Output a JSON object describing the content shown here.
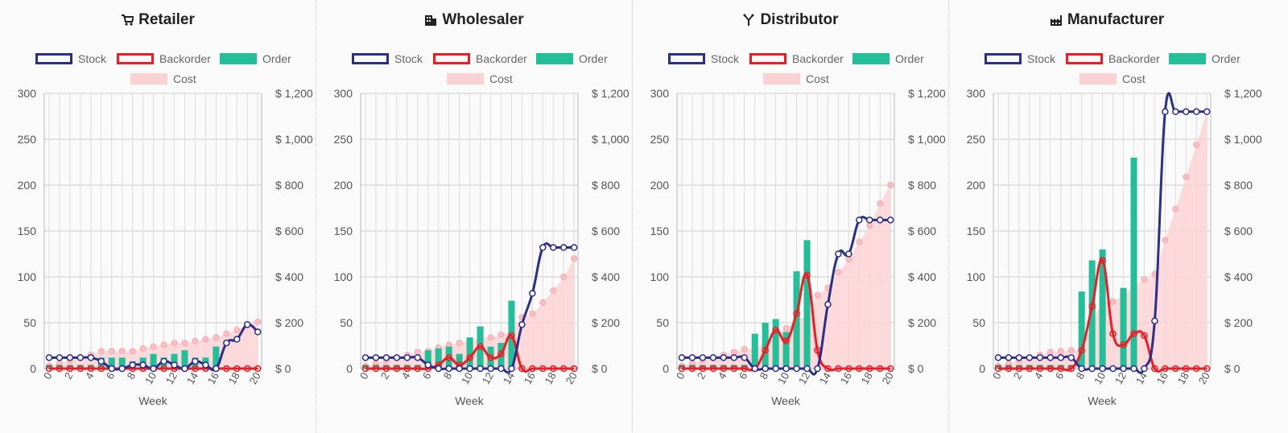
{
  "legend": {
    "stock": "Stock",
    "backorder": "Backorder",
    "order": "Order",
    "cost": "Cost"
  },
  "colors": {
    "stock": "#2b2e8a",
    "backorder": "#ee1c24",
    "order": "#22bf99",
    "cost": "#fbd2d4"
  },
  "xlabel": "Week",
  "x_ticks": [
    "0",
    "2",
    "4",
    "6",
    "8",
    "10",
    "12",
    "14",
    "16",
    "18",
    "20"
  ],
  "y_left_ticks": [
    "0",
    "50",
    "100",
    "150",
    "200",
    "250",
    "300"
  ],
  "y_right_ticks": [
    "$ 0",
    "$ 200",
    "$ 400",
    "$ 600",
    "$ 800",
    "$ 1,000",
    "$ 1,200"
  ],
  "panels": [
    {
      "title": "Retailer",
      "icon": "cart-icon"
    },
    {
      "title": "Wholesaler",
      "icon": "building-icon"
    },
    {
      "title": "Distributor",
      "icon": "fork-icon"
    },
    {
      "title": "Manufacturer",
      "icon": "factory-icon"
    }
  ],
  "chart_data": [
    {
      "type": "bar",
      "title": "Retailer",
      "x": [
        0,
        1,
        2,
        3,
        4,
        5,
        6,
        7,
        8,
        9,
        10,
        11,
        12,
        13,
        14,
        15,
        16,
        17,
        18,
        19,
        20
      ],
      "xlabel": "Week",
      "ylim": [
        0,
        300
      ],
      "y2lim": [
        0,
        1200
      ],
      "series": [
        {
          "name": "Stock",
          "type": "line",
          "values": [
            12,
            12,
            12,
            12,
            12,
            8,
            0,
            0,
            4,
            4,
            0,
            8,
            4,
            0,
            8,
            4,
            0,
            28,
            32,
            48,
            40
          ]
        },
        {
          "name": "Backorder",
          "type": "line",
          "values": [
            0,
            0,
            0,
            0,
            0,
            0,
            0,
            0,
            0,
            0,
            0,
            0,
            0,
            0,
            0,
            0,
            0,
            0,
            0,
            0,
            0
          ]
        },
        {
          "name": "Order",
          "type": "bar",
          "values": [
            4,
            4,
            4,
            4,
            4,
            12,
            12,
            12,
            8,
            12,
            16,
            12,
            16,
            20,
            12,
            12,
            24,
            0,
            0,
            0,
            0
          ]
        },
        {
          "name": "Cost",
          "type": "area",
          "axis": "right",
          "values": [
            12,
            24,
            36,
            48,
            60,
            76,
            76,
            76,
            76,
            88,
            96,
            104,
            112,
            112,
            120,
            128,
            136,
            152,
            168,
            188,
            204
          ]
        }
      ]
    },
    {
      "type": "bar",
      "title": "Wholesaler",
      "x": [
        0,
        1,
        2,
        3,
        4,
        5,
        6,
        7,
        8,
        9,
        10,
        11,
        12,
        13,
        14,
        15,
        16,
        17,
        18,
        19,
        20
      ],
      "xlabel": "Week",
      "ylim": [
        0,
        300
      ],
      "y2lim": [
        0,
        1200
      ],
      "series": [
        {
          "name": "Stock",
          "type": "line",
          "values": [
            12,
            12,
            12,
            12,
            12,
            12,
            4,
            0,
            0,
            0,
            0,
            0,
            0,
            0,
            0,
            48,
            82,
            132,
            132,
            132,
            132
          ]
        },
        {
          "name": "Backorder",
          "type": "line",
          "values": [
            0,
            0,
            0,
            0,
            0,
            0,
            0,
            4,
            12,
            4,
            12,
            24,
            12,
            16,
            36,
            0,
            0,
            0,
            0,
            0,
            0
          ]
        },
        {
          "name": "Order",
          "type": "bar",
          "values": [
            4,
            4,
            4,
            4,
            4,
            4,
            20,
            22,
            24,
            16,
            34,
            46,
            24,
            28,
            74,
            0,
            0,
            0,
            0,
            0,
            0
          ]
        },
        {
          "name": "Cost",
          "type": "area",
          "axis": "right",
          "values": [
            12,
            24,
            36,
            48,
            60,
            72,
            76,
            92,
            104,
            112,
            120,
            136,
            136,
            148,
            168,
            224,
            240,
            288,
            340,
            400,
            480
          ]
        }
      ]
    },
    {
      "type": "bar",
      "title": "Distributor",
      "x": [
        0,
        1,
        2,
        3,
        4,
        5,
        6,
        7,
        8,
        9,
        10,
        11,
        12,
        13,
        14,
        15,
        16,
        17,
        18,
        19,
        20
      ],
      "xlabel": "Week",
      "ylim": [
        0,
        300
      ],
      "y2lim": [
        0,
        1200
      ],
      "series": [
        {
          "name": "Stock",
          "type": "line",
          "values": [
            12,
            12,
            12,
            12,
            12,
            12,
            12,
            0,
            0,
            0,
            0,
            0,
            0,
            0,
            70,
            125,
            125,
            162,
            162,
            162,
            162
          ]
        },
        {
          "name": "Backorder",
          "type": "line",
          "values": [
            0,
            0,
            0,
            0,
            0,
            0,
            0,
            0,
            20,
            42,
            30,
            60,
            102,
            20,
            0,
            0,
            0,
            0,
            0,
            0,
            0
          ]
        },
        {
          "name": "Order",
          "type": "bar",
          "values": [
            4,
            4,
            4,
            4,
            4,
            4,
            4,
            38,
            50,
            54,
            40,
            106,
            140,
            0,
            0,
            0,
            0,
            0,
            0,
            0,
            0
          ]
        },
        {
          "name": "Cost",
          "type": "area",
          "axis": "right",
          "values": [
            12,
            24,
            36,
            48,
            60,
            72,
            84,
            92,
            112,
            144,
            176,
            216,
            232,
            320,
            352,
            420,
            476,
            552,
            624,
            720,
            800
          ]
        }
      ]
    },
    {
      "type": "bar",
      "title": "Manufacturer",
      "x": [
        0,
        1,
        2,
        3,
        4,
        5,
        6,
        7,
        8,
        9,
        10,
        11,
        12,
        13,
        14,
        15,
        16,
        17,
        18,
        19,
        20
      ],
      "xlabel": "Week",
      "ylim": [
        0,
        300
      ],
      "y2lim": [
        0,
        1200
      ],
      "series": [
        {
          "name": "Stock",
          "type": "line",
          "values": [
            12,
            12,
            12,
            12,
            12,
            12,
            12,
            12,
            0,
            0,
            0,
            0,
            0,
            0,
            0,
            52,
            280,
            280,
            280,
            280,
            280
          ]
        },
        {
          "name": "Backorder",
          "type": "line",
          "values": [
            0,
            0,
            0,
            0,
            0,
            0,
            0,
            0,
            20,
            68,
            118,
            38,
            26,
            38,
            36,
            0,
            0,
            0,
            0,
            0,
            0
          ]
        },
        {
          "name": "Order",
          "type": "bar",
          "values": [
            4,
            4,
            4,
            4,
            4,
            4,
            4,
            4,
            84,
            118,
            130,
            0,
            88,
            230,
            0,
            0,
            0,
            0,
            0,
            0,
            0
          ]
        },
        {
          "name": "Cost",
          "type": "area",
          "axis": "right",
          "values": [
            12,
            24,
            36,
            48,
            60,
            72,
            76,
            80,
            96,
            192,
            288,
            292,
            320,
            356,
            388,
            412,
            560,
            696,
            836,
            976,
            1120
          ]
        }
      ]
    }
  ]
}
